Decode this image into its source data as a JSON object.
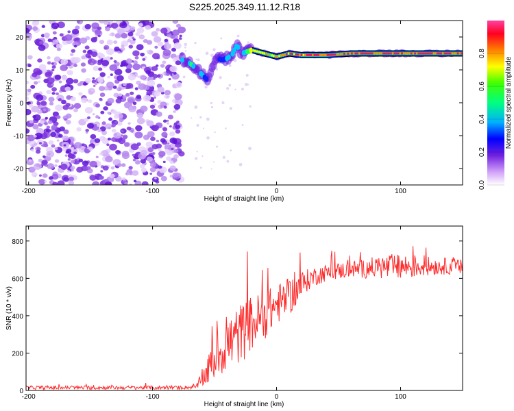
{
  "page_title": "S225.2025.349.11.12.R18",
  "chart_data": [
    {
      "id": "spectrogram",
      "type": "heatmap",
      "title": "S225.2025.349.11.12.R18",
      "xlabel": "Height of straight line (km)",
      "ylabel": "Frequency (Hz)",
      "xlim": [
        -202,
        150
      ],
      "ylim": [
        -25,
        25
      ],
      "xticks": [
        -200,
        -100,
        0,
        100
      ],
      "yticks": [
        -20,
        -10,
        0,
        10,
        20
      ],
      "colorbar": {
        "label": "Normalized spectral amplitude",
        "range": [
          0.0,
          1.0
        ],
        "ticks": [
          0.0,
          0.2,
          0.4,
          0.6,
          0.8
        ],
        "tick_labels": [
          "0.0",
          "0.2",
          "0.4",
          "0.6",
          "0.8"
        ],
        "colormap": [
          "#ffffff",
          "#b080f0",
          "#6020e0",
          "#0000ff",
          "#00c0ff",
          "#00ff60",
          "#ffff00",
          "#ff8000",
          "#ff0040",
          "#ff40a0"
        ]
      },
      "noise_region_x": [
        -202,
        -76
      ],
      "transition_region_x": [
        -76,
        -20
      ],
      "signal_trace": {
        "x": [
          -76,
          -72,
          -68,
          -64,
          -60,
          -56,
          -52,
          -48,
          -44,
          -40,
          -36,
          -32,
          -28,
          -24,
          -20,
          -10,
          0,
          10,
          20,
          40,
          60,
          80,
          100,
          120,
          150
        ],
        "y": [
          13.0,
          12.5,
          11.5,
          10.0,
          8.5,
          7.0,
          10.5,
          13.5,
          13.0,
          13.5,
          14.5,
          17.5,
          15.0,
          15.5,
          16.0,
          15.0,
          14.0,
          15.0,
          14.5,
          14.5,
          15.0,
          15.0,
          15.0,
          15.0,
          15.0
        ],
        "amplitude": [
          0.4,
          0.5,
          0.55,
          0.5,
          0.4,
          0.3,
          0.3,
          0.3,
          0.3,
          0.35,
          0.4,
          0.45,
          0.5,
          0.55,
          0.6,
          0.65,
          0.7,
          0.75,
          0.8,
          0.85,
          0.85,
          0.85,
          0.85,
          0.85,
          0.85
        ]
      }
    },
    {
      "id": "snr",
      "type": "line",
      "xlabel": "Height of straight line (km)",
      "ylabel": "SNR (10 * v/v)",
      "xlim": [
        -202,
        150
      ],
      "ylim": [
        0,
        880
      ],
      "xticks": [
        -200,
        -100,
        0,
        100
      ],
      "yticks": [
        0,
        200,
        400,
        600,
        800
      ],
      "series": [
        {
          "name": "SNR",
          "color": "#ff2a2a",
          "x": [
            -202,
            -160,
            -120,
            -80,
            -65,
            -60,
            -55,
            -50,
            -45,
            -40,
            -35,
            -30,
            -25,
            -20,
            -15,
            -10,
            -5,
            0,
            5,
            10,
            15,
            20,
            25,
            30,
            35,
            40,
            50,
            60,
            70,
            80,
            90,
            100,
            110,
            120,
            130,
            140,
            150
          ],
          "y": [
            15,
            15,
            15,
            15,
            18,
            60,
            110,
            170,
            210,
            240,
            270,
            300,
            330,
            360,
            380,
            400,
            430,
            460,
            480,
            500,
            530,
            560,
            590,
            610,
            620,
            630,
            640,
            650,
            650,
            660,
            660,
            660,
            665,
            665,
            665,
            665,
            660
          ],
          "spread": [
            10,
            10,
            10,
            10,
            10,
            40,
            80,
            110,
            130,
            150,
            160,
            160,
            160,
            150,
            140,
            130,
            120,
            110,
            100,
            100,
            90,
            80,
            60,
            50,
            50,
            45,
            45,
            45,
            50,
            60,
            70,
            70,
            65,
            55,
            45,
            45,
            40
          ]
        }
      ]
    }
  ]
}
